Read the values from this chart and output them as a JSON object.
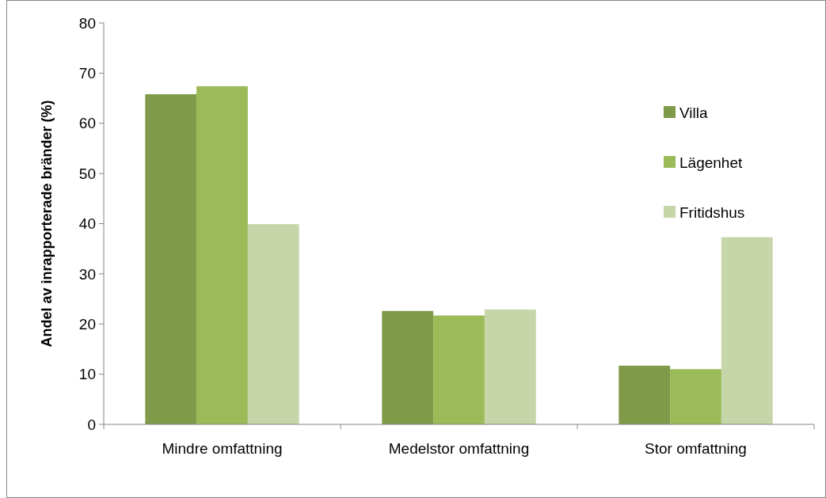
{
  "chart_data": {
    "type": "bar",
    "ylabel": "Andel av inrapporterade bränder (%)",
    "categories": [
      "Mindre omfattning",
      "Medelstor omfattning",
      "Stor omfattning"
    ],
    "series": [
      {
        "name": "Villa",
        "color": "#7f9a48",
        "values": [
          65.8,
          22.6,
          11.7
        ]
      },
      {
        "name": "Lägenhet",
        "color": "#9bbb59",
        "values": [
          67.4,
          21.7,
          11.0
        ]
      },
      {
        "name": "Fritidshus",
        "color": "#c6d6a9",
        "values": [
          39.9,
          22.9,
          37.3
        ]
      }
    ],
    "ylim": [
      0,
      80
    ],
    "yticks": [
      0,
      10,
      20,
      30,
      40,
      50,
      60,
      70,
      80
    ],
    "grid": false,
    "legend": "top right"
  }
}
